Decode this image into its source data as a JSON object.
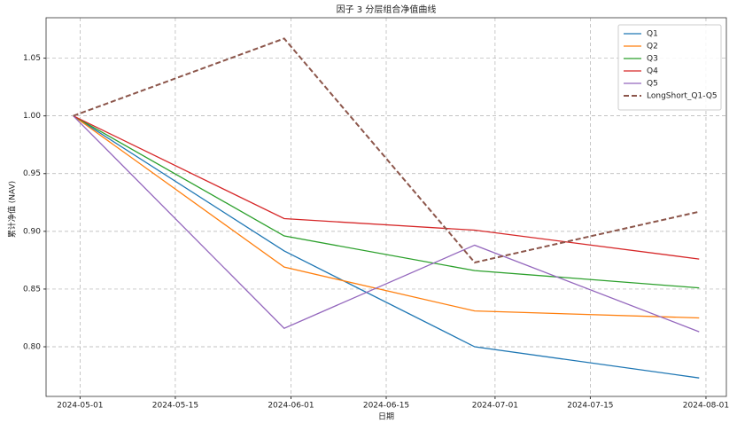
{
  "chart_data": {
    "type": "line",
    "title": "因子 3 分层组合净值曲线",
    "x_label": "日期",
    "y_label": "累计净值 (NAV)",
    "x": [
      "2024-04-30",
      "2024-05-31",
      "2024-06-28",
      "2024-07-31"
    ],
    "series": [
      {
        "name": "Q1",
        "color": "#1f77b4",
        "linestyle": "solid",
        "values": [
          1.0,
          0.883,
          0.8,
          0.773
        ]
      },
      {
        "name": "Q2",
        "color": "#ff7f0e",
        "linestyle": "solid",
        "values": [
          1.0,
          0.869,
          0.831,
          0.825
        ]
      },
      {
        "name": "Q3",
        "color": "#2ca02c",
        "linestyle": "solid",
        "values": [
          1.0,
          0.896,
          0.866,
          0.851
        ]
      },
      {
        "name": "Q4",
        "color": "#d62728",
        "linestyle": "solid",
        "values": [
          1.0,
          0.911,
          0.901,
          0.876
        ]
      },
      {
        "name": "Q5",
        "color": "#9467bd",
        "linestyle": "solid",
        "values": [
          1.0,
          0.816,
          0.888,
          0.813
        ]
      },
      {
        "name": "LongShort_Q1-Q5",
        "color": "#8c564b",
        "linestyle": "dashed",
        "values": [
          1.0,
          1.067,
          0.873,
          0.917
        ]
      }
    ],
    "xlim": [
      "2024-04-26",
      "2024-08-04"
    ],
    "xticks": [
      "2024-05-01",
      "2024-05-15",
      "2024-06-01",
      "2024-06-15",
      "2024-07-01",
      "2024-07-15",
      "2024-08-01"
    ],
    "ylim": [
      0.757,
      1.085
    ],
    "yticks": [
      {
        "value": 0.8,
        "label": "0.80"
      },
      0.85,
      {
        "value": 0.9,
        "label": "0.90"
      },
      0.95,
      {
        "value": 1.0,
        "label": "1.00"
      },
      1.05
    ],
    "grid": true,
    "legend": "upper right"
  }
}
